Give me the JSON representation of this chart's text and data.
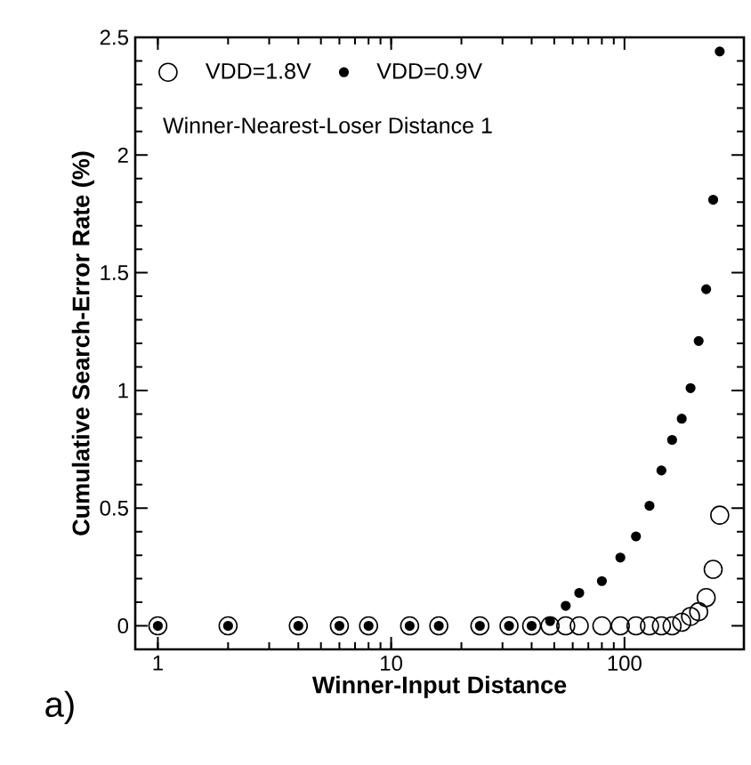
{
  "chart_data": {
    "type": "scatter",
    "xlabel": "Winner-Input Distance",
    "ylabel": "Cumulative Search-Error Rate (%)",
    "x": [
      1,
      2,
      4,
      6,
      8,
      12,
      16,
      24,
      32,
      40,
      48,
      56,
      64,
      80,
      96,
      112,
      128,
      144,
      160,
      176,
      192,
      208,
      224,
      240,
      256
    ],
    "series": [
      {
        "name": "VDD=1.8V",
        "color": "#000000",
        "marker": "circle",
        "values": [
          0,
          0,
          0,
          0,
          0,
          0,
          0,
          0,
          0,
          0,
          0,
          0,
          0,
          0,
          0,
          0,
          0,
          0,
          0,
          0.015,
          0.04,
          0.06,
          0.12,
          0.24,
          0.47
        ]
      },
      {
        "name": "VDD=0.9V",
        "color": "#000000",
        "marker": "dot",
        "values": [
          0,
          0,
          0,
          0,
          0,
          0,
          0,
          0,
          0,
          0,
          0.02,
          0.085,
          0.14,
          0.19,
          0.29,
          0.38,
          0.51,
          0.66,
          0.79,
          0.88,
          1.01,
          1.21,
          1.43,
          1.81,
          2.44
        ]
      }
    ],
    "annotations": [
      "Winner-Nearest-Loser Distance 1",
      "a)"
    ],
    "log": "x",
    "xlim": [
      0.8,
      325
    ],
    "xticks": [
      1,
      10,
      100
    ],
    "ylim": [
      -0.1,
      2.5
    ],
    "yticks": [
      0,
      0.5,
      1,
      1.5,
      2,
      2.5
    ],
    "legend": "top left"
  }
}
